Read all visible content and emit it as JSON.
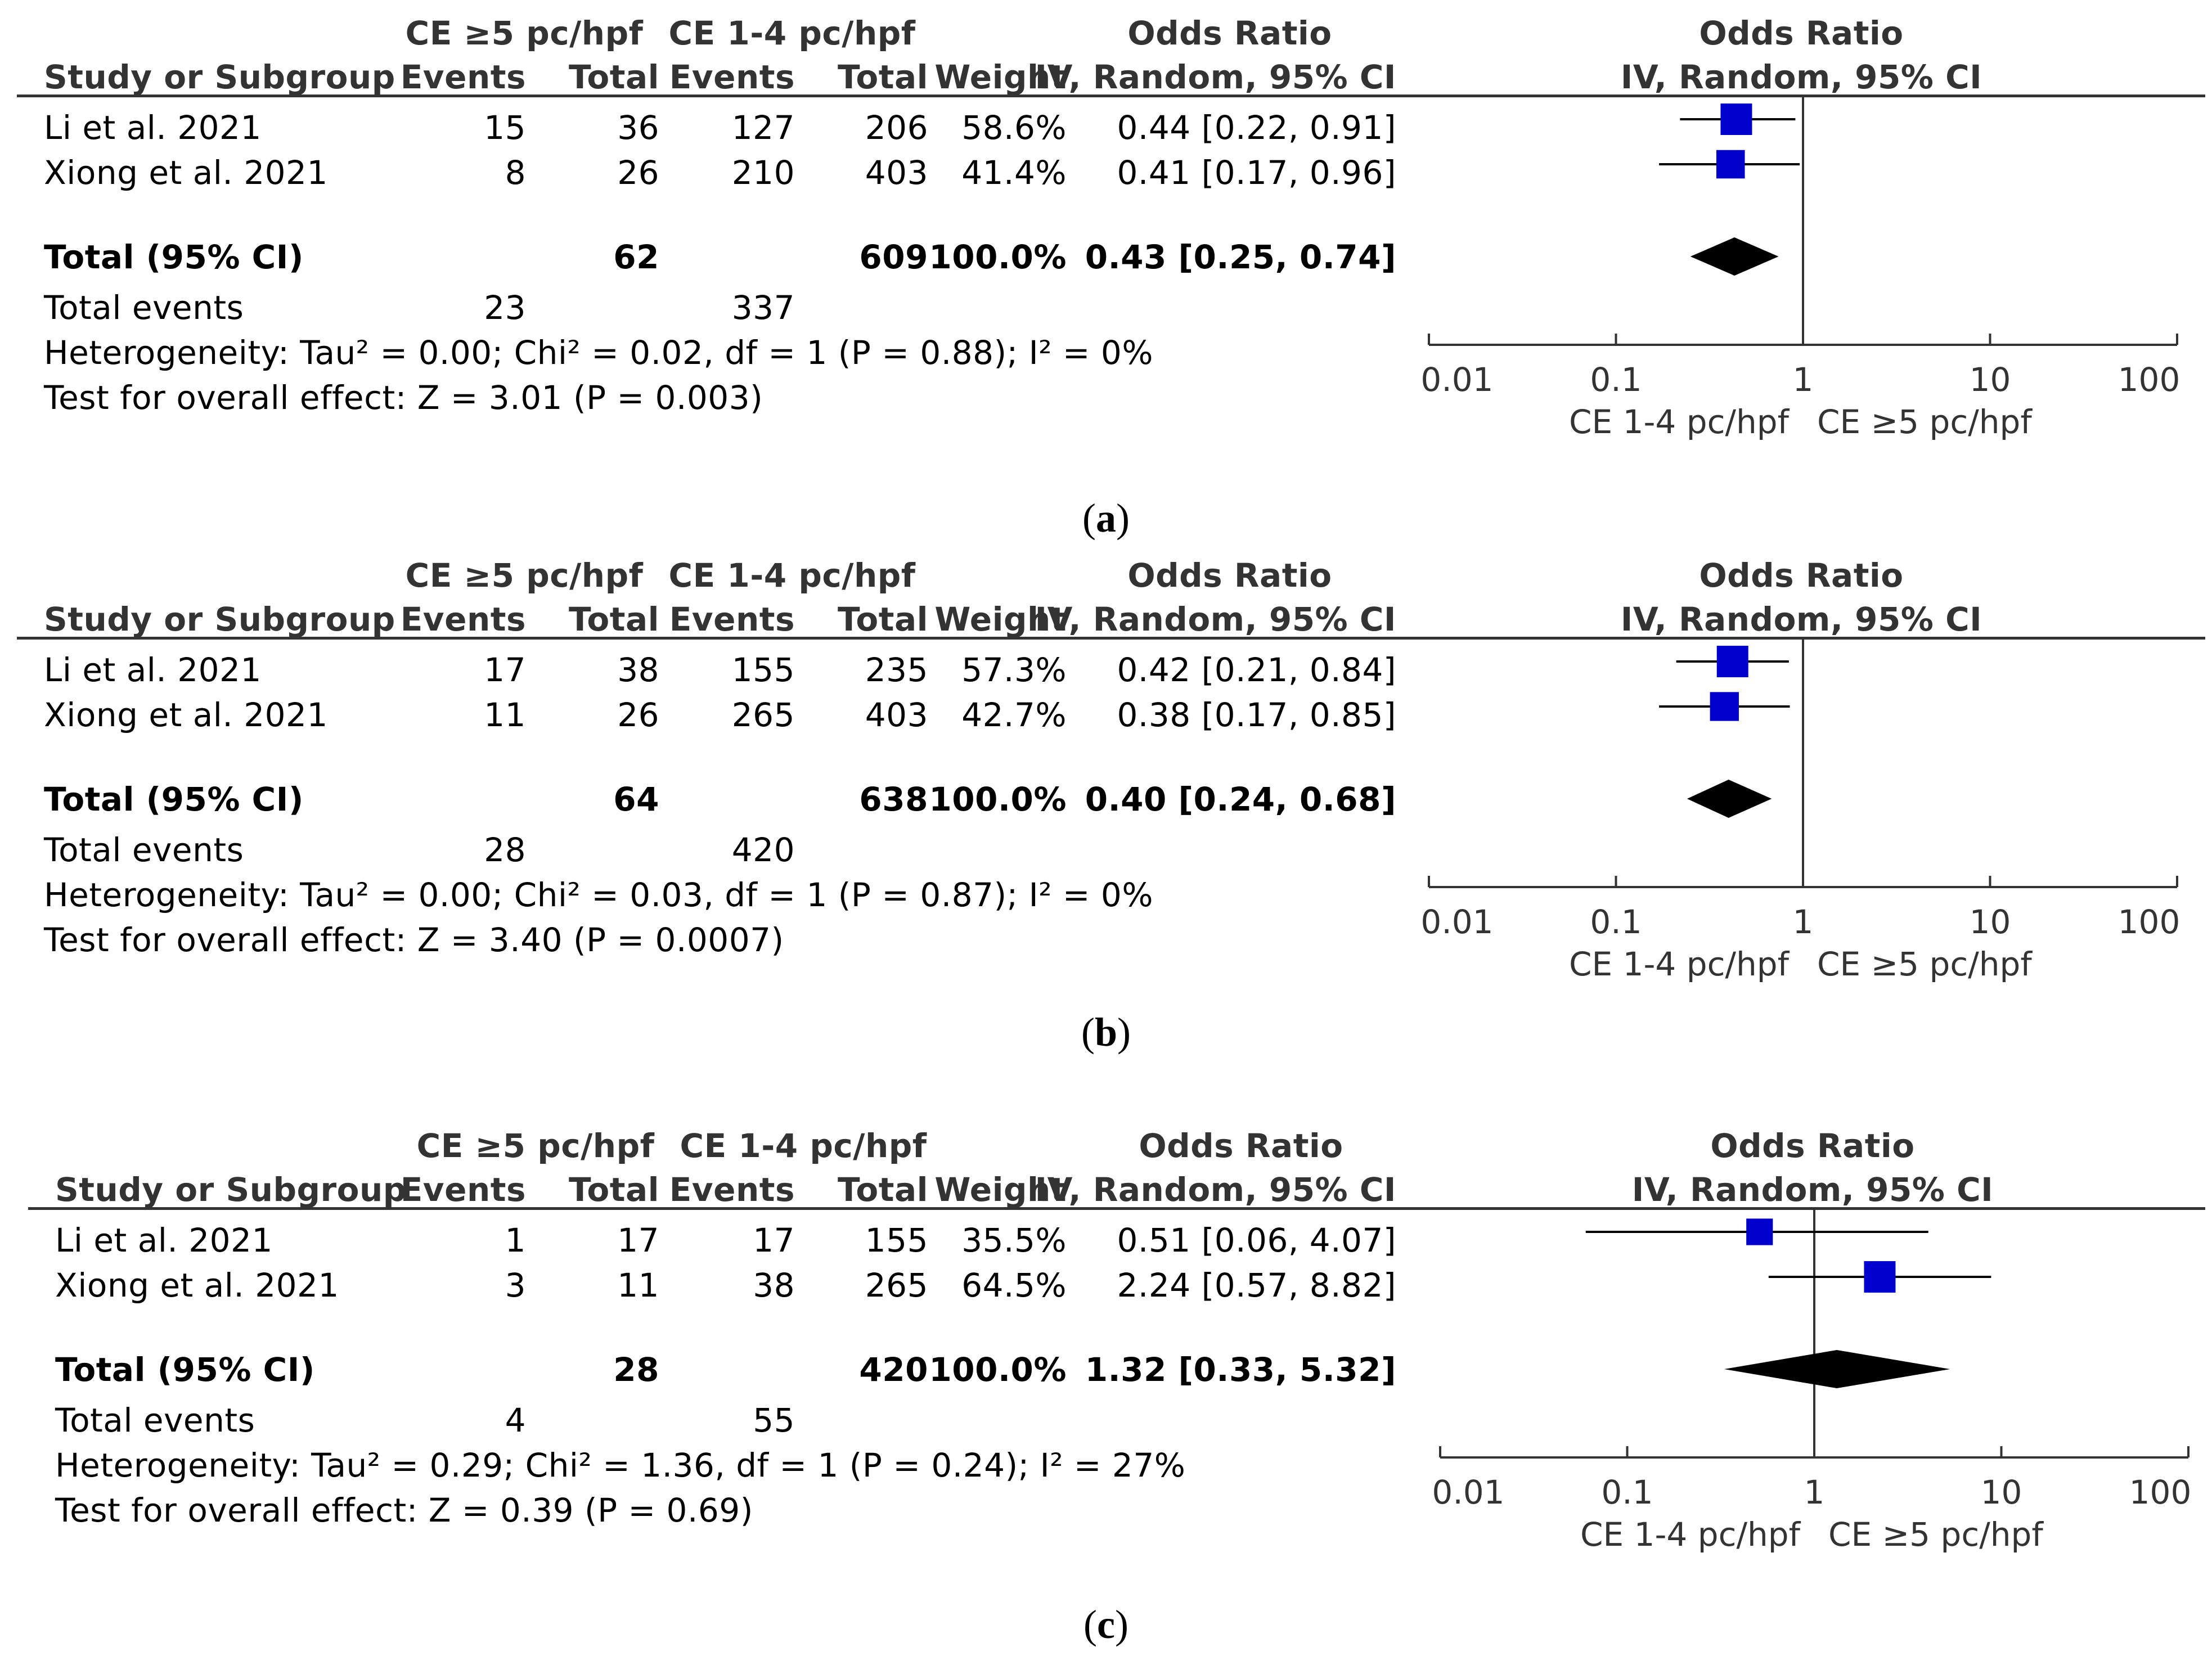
{
  "column_headers": {
    "group1": "CE ≥5 pc/hpf",
    "group2": "CE 1-4 pc/hpf",
    "or_table": "Odds Ratio",
    "or_plot": "Odds Ratio",
    "study": "Study or Subgroup",
    "events1": "Events",
    "total1": "Total",
    "events2": "Events",
    "total2": "Total",
    "weight": "Weight",
    "method_table": "IV, Random, 95% CI",
    "method_plot": "IV, Random, 95% CI"
  },
  "labels": {
    "total_ci": "Total (95% CI)",
    "total_events": "Total events"
  },
  "colors": {
    "square": "#0000CC",
    "diamond": "#000000",
    "line": "#333333"
  },
  "panels": [
    {
      "caption_letter": "a",
      "studies": [
        {
          "name": "Li et al. 2021",
          "events1": "15",
          "total1": "36",
          "events2": "127",
          "total2": "206",
          "weight": "58.6%",
          "ci_text": "0.44 [0.22, 0.91]"
        },
        {
          "name": "Xiong et al. 2021",
          "events1": "8",
          "total1": "26",
          "events2": "210",
          "total2": "403",
          "weight": "41.4%",
          "ci_text": "0.41 [0.17, 0.96]"
        }
      ],
      "total": {
        "total1": "62",
        "total2": "609",
        "weight": "100.0%",
        "ci_text": "0.43 [0.25, 0.74]"
      },
      "total_events": {
        "group1": "23",
        "group2": "337"
      },
      "heterogeneity": "Heterogeneity: Tau² = 0.00; Chi² = 0.02, df = 1 (P = 0.88); I² = 0%",
      "overall_effect": "Test for overall effect: Z = 3.01 (P = 0.003)"
    },
    {
      "caption_letter": "b",
      "studies": [
        {
          "name": "Li et al. 2021",
          "events1": "17",
          "total1": "38",
          "events2": "155",
          "total2": "235",
          "weight": "57.3%",
          "ci_text": "0.42 [0.21, 0.84]"
        },
        {
          "name": "Xiong et al. 2021",
          "events1": "11",
          "total1": "26",
          "events2": "265",
          "total2": "403",
          "weight": "42.7%",
          "ci_text": "0.38 [0.17, 0.85]"
        }
      ],
      "total": {
        "total1": "64",
        "total2": "638",
        "weight": "100.0%",
        "ci_text": "0.40 [0.24, 0.68]"
      },
      "total_events": {
        "group1": "28",
        "group2": "420"
      },
      "heterogeneity": "Heterogeneity: Tau² = 0.00; Chi² = 0.03, df = 1 (P = 0.87); I² = 0%",
      "overall_effect": "Test for overall effect: Z = 3.40 (P = 0.0007)"
    },
    {
      "caption_letter": "c",
      "studies": [
        {
          "name": "Li et al. 2021",
          "events1": "1",
          "total1": "17",
          "events2": "17",
          "total2": "155",
          "weight": "35.5%",
          "ci_text": "0.51 [0.06, 4.07]"
        },
        {
          "name": "Xiong et al. 2021",
          "events1": "3",
          "total1": "11",
          "events2": "38",
          "total2": "265",
          "weight": "64.5%",
          "ci_text": "2.24 [0.57, 8.82]"
        }
      ],
      "total": {
        "total1": "28",
        "total2": "420",
        "weight": "100.0%",
        "ci_text": "1.32 [0.33, 5.32]"
      },
      "total_events": {
        "group1": "4",
        "group2": "55"
      },
      "heterogeneity": "Heterogeneity: Tau² = 0.29; Chi² = 1.36, df = 1 (P = 0.24); I² = 27%",
      "overall_effect": "Test for overall effect: Z = 0.39 (P = 0.69)"
    }
  ],
  "chart_data": [
    {
      "type": "forest",
      "title": "(a)",
      "xscale": "log",
      "xlim": [
        0.01,
        100
      ],
      "xticks": [
        0.01,
        0.1,
        1,
        10,
        100
      ],
      "xtick_labels": [
        "0.01",
        "0.1",
        "1",
        "10",
        "100"
      ],
      "xlabel_left": "CE 1-4 pc/hpf",
      "xlabel_right": "CE ≥5 pc/hpf",
      "studies": [
        {
          "label": "Li et al. 2021",
          "or": 0.44,
          "lower": 0.22,
          "upper": 0.91,
          "weight": 58.6
        },
        {
          "label": "Xiong et al. 2021",
          "or": 0.41,
          "lower": 0.17,
          "upper": 0.96,
          "weight": 41.4
        }
      ],
      "pooled": {
        "or": 0.43,
        "lower": 0.25,
        "upper": 0.74
      }
    },
    {
      "type": "forest",
      "title": "(b)",
      "xscale": "log",
      "xlim": [
        0.01,
        100
      ],
      "xticks": [
        0.01,
        0.1,
        1,
        10,
        100
      ],
      "xtick_labels": [
        "0.01",
        "0.1",
        "1",
        "10",
        "100"
      ],
      "xlabel_left": "CE 1-4 pc/hpf",
      "xlabel_right": "CE ≥5 pc/hpf",
      "studies": [
        {
          "label": "Li et al. 2021",
          "or": 0.42,
          "lower": 0.21,
          "upper": 0.84,
          "weight": 57.3
        },
        {
          "label": "Xiong et al. 2021",
          "or": 0.38,
          "lower": 0.17,
          "upper": 0.85,
          "weight": 42.7
        }
      ],
      "pooled": {
        "or": 0.4,
        "lower": 0.24,
        "upper": 0.68
      }
    },
    {
      "type": "forest",
      "title": "(c)",
      "xscale": "log",
      "xlim": [
        0.01,
        100
      ],
      "xticks": [
        0.01,
        0.1,
        1,
        10,
        100
      ],
      "xtick_labels": [
        "0.01",
        "0.1",
        "1",
        "10",
        "100"
      ],
      "xlabel_left": "CE 1-4 pc/hpf",
      "xlabel_right": "CE ≥5 pc/hpf",
      "studies": [
        {
          "label": "Li et al. 2021",
          "or": 0.51,
          "lower": 0.06,
          "upper": 4.07,
          "weight": 35.5
        },
        {
          "label": "Xiong et al. 2021",
          "or": 2.24,
          "lower": 0.57,
          "upper": 8.82,
          "weight": 64.5
        }
      ],
      "pooled": {
        "or": 1.32,
        "lower": 0.33,
        "upper": 5.32
      }
    }
  ]
}
